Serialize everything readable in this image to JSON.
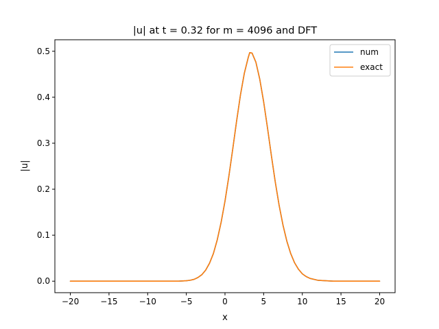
{
  "chart_data": {
    "type": "line",
    "title": "|u| at t = 0.32 for m = 4096 and DFT",
    "xlabel": "x",
    "ylabel": "|u|",
    "xlim": [
      -22,
      22
    ],
    "ylim": [
      -0.025,
      0.525
    ],
    "xticks": [
      -20,
      -15,
      -10,
      -5,
      0,
      5,
      10,
      15,
      20
    ],
    "xtick_labels": [
      "−20",
      "−15",
      "−10",
      "−5",
      "0",
      "5",
      "10",
      "15",
      "20"
    ],
    "yticks": [
      0.0,
      0.1,
      0.2,
      0.3,
      0.4,
      0.5
    ],
    "ytick_labels": [
      "0.0",
      "0.1",
      "0.2",
      "0.3",
      "0.4",
      "0.5"
    ],
    "grid": false,
    "legend": "upper right",
    "x": [
      -20,
      -18,
      -16,
      -14,
      -12,
      -10,
      -9,
      -8,
      -7,
      -6,
      -5,
      -4.5,
      -4,
      -3.5,
      -3,
      -2.5,
      -2,
      -1.5,
      -1,
      -0.5,
      0,
      0.5,
      1,
      1.5,
      2,
      2.5,
      3,
      3.2,
      3.5,
      4,
      4.5,
      5,
      5.5,
      6,
      6.5,
      7,
      7.5,
      8,
      8.5,
      9,
      9.5,
      10,
      10.5,
      11,
      12,
      13,
      14,
      16,
      18,
      20
    ],
    "series": [
      {
        "name": "num",
        "color": "#1f77b4",
        "values": [
          0,
          0,
          0,
          0,
          0,
          0,
          0,
          0,
          0,
          0,
          0.001,
          0.002,
          0.004,
          0.008,
          0.014,
          0.024,
          0.039,
          0.06,
          0.09,
          0.128,
          0.174,
          0.228,
          0.287,
          0.348,
          0.405,
          0.452,
          0.486,
          0.497,
          0.496,
          0.476,
          0.439,
          0.39,
          0.333,
          0.273,
          0.216,
          0.165,
          0.122,
          0.087,
          0.06,
          0.04,
          0.026,
          0.016,
          0.01,
          0.006,
          0.002,
          0.001,
          0,
          0,
          0,
          0
        ]
      },
      {
        "name": "exact",
        "color": "#ff7f0e",
        "values": [
          0,
          0,
          0,
          0,
          0,
          0,
          0,
          0,
          0,
          0,
          0.001,
          0.002,
          0.004,
          0.008,
          0.014,
          0.024,
          0.039,
          0.06,
          0.09,
          0.128,
          0.174,
          0.228,
          0.287,
          0.348,
          0.405,
          0.452,
          0.486,
          0.497,
          0.496,
          0.476,
          0.439,
          0.39,
          0.333,
          0.273,
          0.216,
          0.165,
          0.122,
          0.087,
          0.06,
          0.04,
          0.026,
          0.016,
          0.01,
          0.006,
          0.002,
          0.001,
          0,
          0,
          0,
          0
        ]
      }
    ]
  }
}
